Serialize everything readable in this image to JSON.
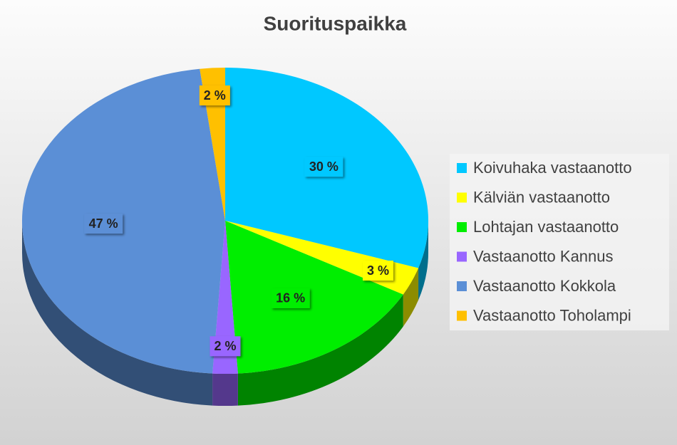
{
  "chart_data": {
    "type": "pie",
    "title": "Suorituspaikka",
    "categories": [
      "Koivuhaka vastaanotto",
      "Kälviän vastaanotto",
      "Lohtajan vastaanotto",
      "Vastaanotto Kannus",
      "Vastaanotto Kokkola",
      "Vastaanotto Toholampi"
    ],
    "values": [
      30,
      3,
      16,
      2,
      47,
      2
    ],
    "value_labels": [
      "30 %",
      "3 %",
      "16 %",
      "2 %",
      "47 %",
      "2 %"
    ],
    "colors": [
      "#00c8ff",
      "#ffff00",
      "#00ee00",
      "#9966ff",
      "#5b8fd6",
      "#ffc000"
    ],
    "legend": "right"
  }
}
